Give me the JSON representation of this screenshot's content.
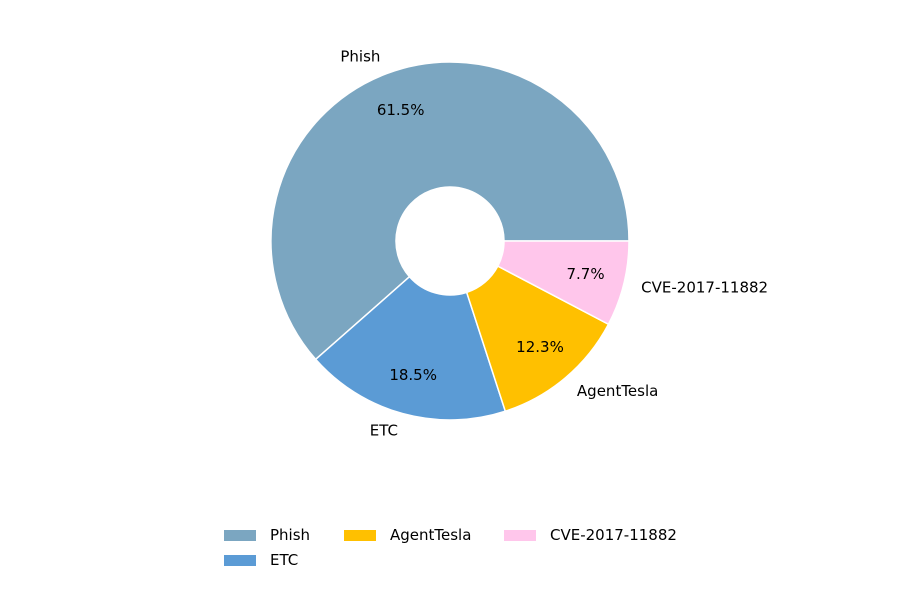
{
  "chart_data": {
    "type": "pie",
    "title": "",
    "donut": true,
    "start_angle_deg": 0,
    "direction": "counterclockwise",
    "slices": [
      {
        "label": "Phish",
        "value": 61.5,
        "pct_label": "61.5%",
        "color": "#7ba6c1"
      },
      {
        "label": "ETC",
        "value": 18.5,
        "pct_label": "18.5%",
        "color": "#5b9bd5"
      },
      {
        "label": "AgentTesla",
        "value": 12.3,
        "pct_label": "12.3%",
        "color": "#ffc000"
      },
      {
        "label": "CVE-2017-11882",
        "value": 7.7,
        "pct_label": "7.7%",
        "color": "#ffc6eb"
      }
    ],
    "legend_placement": "bottom-center"
  }
}
